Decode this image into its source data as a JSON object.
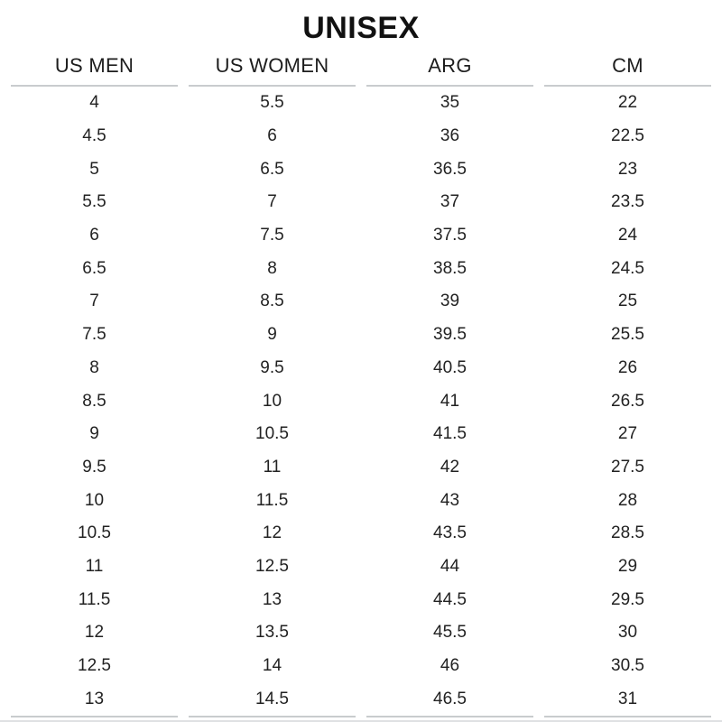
{
  "title": "UNISEX",
  "colors": {
    "background": "#ffffff",
    "text": "#1d1d1d",
    "rule": "#c9ccce",
    "bottom_edge": "#dfe1e3"
  },
  "chart_data": {
    "type": "table",
    "title": "UNISEX",
    "columns": [
      "US MEN",
      "US WOMEN",
      "ARG",
      "CM"
    ],
    "rows": [
      [
        "4",
        "5.5",
        "35",
        "22"
      ],
      [
        "4.5",
        "6",
        "36",
        "22.5"
      ],
      [
        "5",
        "6.5",
        "36.5",
        "23"
      ],
      [
        "5.5",
        "7",
        "37",
        "23.5"
      ],
      [
        "6",
        "7.5",
        "37.5",
        "24"
      ],
      [
        "6.5",
        "8",
        "38.5",
        "24.5"
      ],
      [
        "7",
        "8.5",
        "39",
        "25"
      ],
      [
        "7.5",
        "9",
        "39.5",
        "25.5"
      ],
      [
        "8",
        "9.5",
        "40.5",
        "26"
      ],
      [
        "8.5",
        "10",
        "41",
        "26.5"
      ],
      [
        "9",
        "10.5",
        "41.5",
        "27"
      ],
      [
        "9.5",
        "11",
        "42",
        "27.5"
      ],
      [
        "10",
        "11.5",
        "43",
        "28"
      ],
      [
        "10.5",
        "12",
        "43.5",
        "28.5"
      ],
      [
        "11",
        "12.5",
        "44",
        "29"
      ],
      [
        "11.5",
        "13",
        "44.5",
        "29.5"
      ],
      [
        "12",
        "13.5",
        "45.5",
        "30"
      ],
      [
        "12.5",
        "14",
        "46",
        "30.5"
      ],
      [
        "13",
        "14.5",
        "46.5",
        "31"
      ]
    ]
  }
}
